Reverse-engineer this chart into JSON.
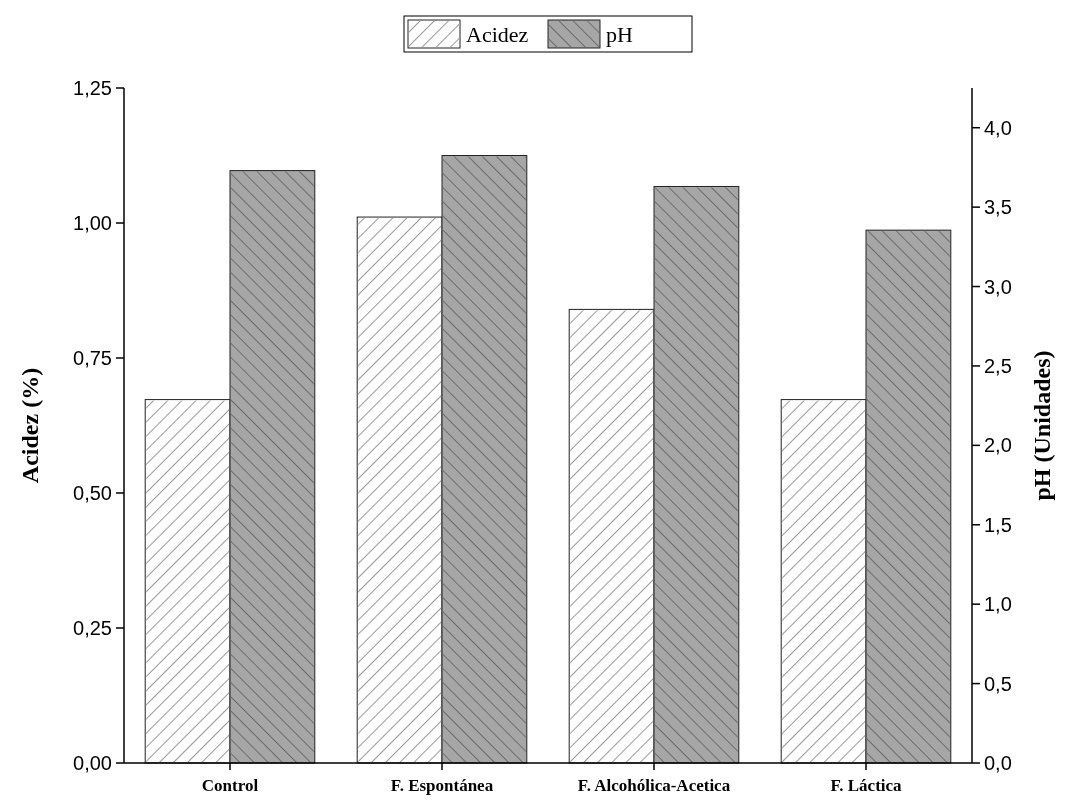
{
  "chart_data": {
    "type": "bar",
    "categories": [
      "Control",
      "F. Espontánea",
      "F. Alcohólica-Acetica",
      "F. Láctica"
    ],
    "series": [
      {
        "name": "Acidez",
        "color": "#ffffff",
        "values": [
          0.673,
          1.011,
          0.84,
          0.673
        ]
      },
      {
        "name": "pH",
        "color": "#a6a6a6",
        "axis": "y2",
        "values": [
          3.73,
          3.825,
          3.63,
          3.355
        ]
      }
    ],
    "ylabel": "Acidez (%)",
    "y2label": "pH (Unidades)",
    "ylim": [
      0,
      1.25
    ],
    "yticks": [
      {
        "value": 0,
        "label": "0,00"
      },
      {
        "value": 0.25,
        "label": "0,25"
      },
      {
        "value": 0.5,
        "label": "0,50"
      },
      {
        "value": 0.75,
        "label": "0,75"
      },
      {
        "value": 1,
        "label": "1,00"
      },
      {
        "value": 1.25,
        "label": "1,25"
      }
    ],
    "y2lim": [
      0,
      4.25
    ],
    "y2ticks": [
      {
        "value": 0,
        "label": "0,0"
      },
      {
        "value": 0.5,
        "label": "0,5"
      },
      {
        "value": 1,
        "label": "1,0"
      },
      {
        "value": 1.5,
        "label": "1,5"
      },
      {
        "value": 2,
        "label": "2,0"
      },
      {
        "value": 2.5,
        "label": "2,5"
      },
      {
        "value": 3,
        "label": "3,0"
      },
      {
        "value": 3.5,
        "label": "3,5"
      },
      {
        "value": 4,
        "label": "4,0"
      }
    ],
    "legend": "top",
    "grid": false
  }
}
